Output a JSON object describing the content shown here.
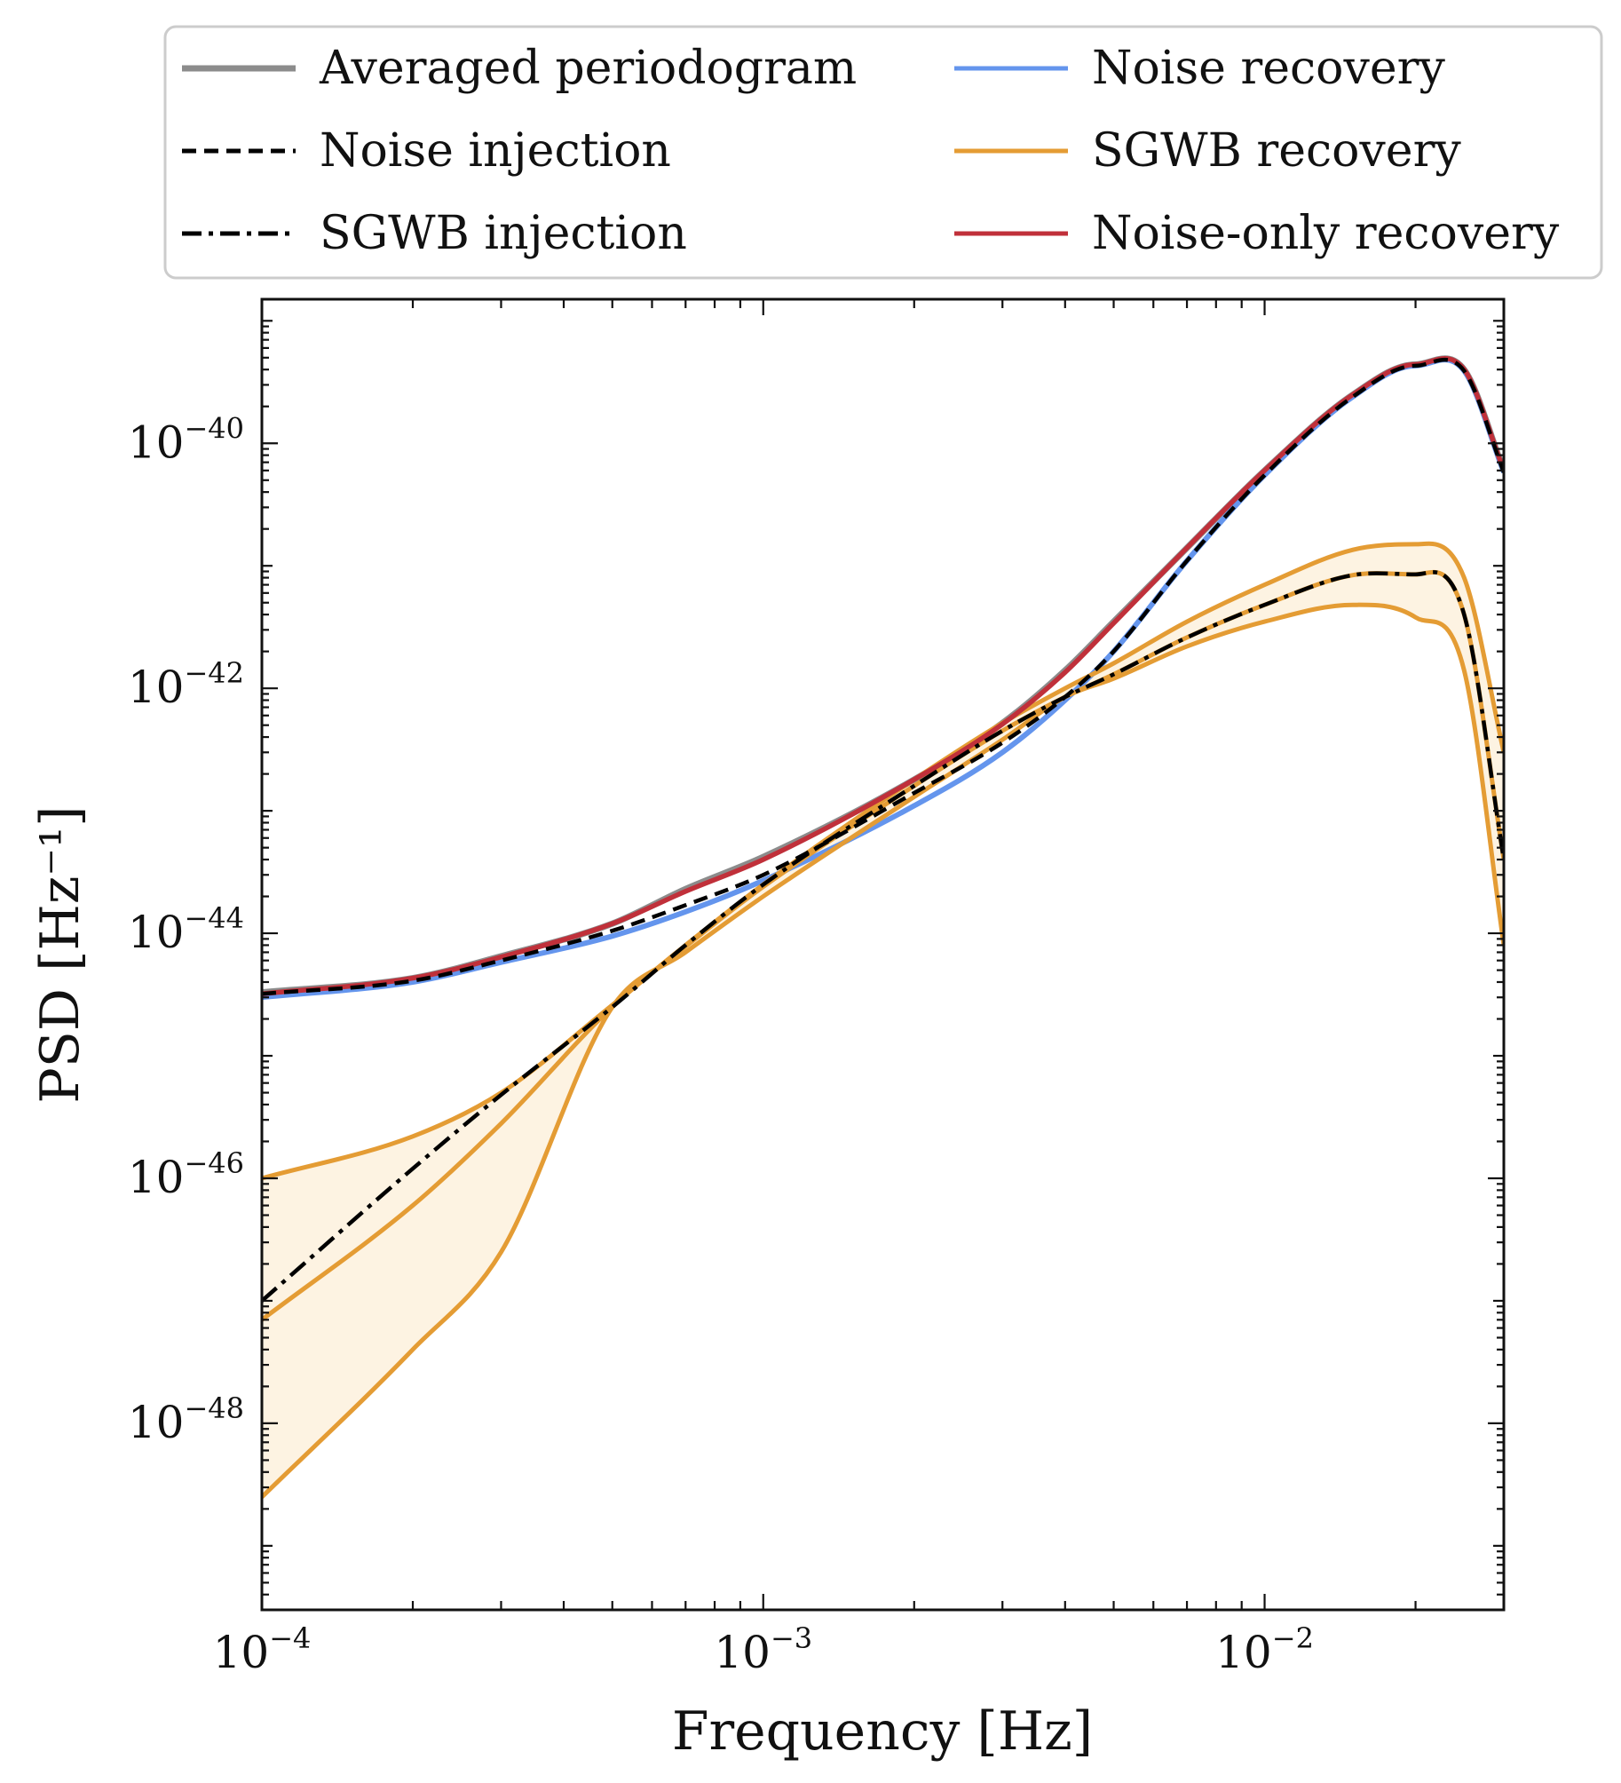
{
  "chart_data": {
    "type": "line",
    "title": "",
    "xlabel": "Frequency [Hz]",
    "ylabel": "PSD [Hz⁻¹]",
    "xscale": "log",
    "yscale": "log",
    "xlim": [
      0.0001,
      0.03
    ],
    "ylim": [
      3e-50,
      1.5e-39
    ],
    "grid": false,
    "legend_location": "upper center, outside above plot, two columns",
    "x_ticks": [
      {
        "value": 0.0001,
        "base": "10",
        "exp": "−4"
      },
      {
        "value": 0.001,
        "base": "10",
        "exp": "−3"
      },
      {
        "value": 0.01,
        "base": "10",
        "exp": "−2"
      }
    ],
    "y_ticks": [
      {
        "value": 1e-40,
        "base": "10",
        "exp": "−40"
      },
      {
        "value": 1e-42,
        "base": "10",
        "exp": "−42"
      },
      {
        "value": 1e-44,
        "base": "10",
        "exp": "−44"
      },
      {
        "value": 1e-46,
        "base": "10",
        "exp": "−46"
      },
      {
        "value": 1e-48,
        "base": "10",
        "exp": "−48"
      }
    ],
    "x": [
      0.0001,
      0.0002,
      0.0003,
      0.0005,
      0.0007,
      0.001,
      0.002,
      0.003,
      0.004,
      0.005,
      0.007,
      0.01,
      0.015,
      0.02,
      0.025,
      0.03
    ],
    "series": [
      {
        "name": "Averaged periodogram",
        "color": "#8c8c8c",
        "dash": "solid",
        "values": [
          3.3e-45,
          4.3e-45,
          6.5e-45,
          1.2e-44,
          2.3e-44,
          4.2e-44,
          1.8e-43,
          5.2e-43,
          1.4e-42,
          3.5e-42,
          1.4e-41,
          6e-41,
          2.5e-40,
          4.4e-40,
          4e-40,
          6e-41
        ]
      },
      {
        "name": "Noise injection",
        "color": "#000000",
        "dash": "dashed",
        "values": [
          3.2e-45,
          4.1e-45,
          6e-45,
          1.05e-44,
          1.7e-44,
          3e-44,
          1.4e-43,
          3.6e-43,
          8.5e-43,
          2e-42,
          1.1e-41,
          5.5e-41,
          2.4e-40,
          4.3e-40,
          3.9e-40,
          5.8e-41
        ]
      },
      {
        "name": "SGWB injection",
        "color": "#000000",
        "dash": "dashdot",
        "values": [
          1e-47,
          1.2e-46,
          4.8e-46,
          2.5e-45,
          8e-45,
          2.5e-44,
          1.6e-43,
          4.5e-43,
          8.5e-43,
          1.3e-42,
          2.6e-42,
          4.8e-42,
          8.4e-42,
          8.5e-42,
          4e-42,
          4e-44
        ]
      },
      {
        "name": "Noise recovery",
        "color": "#6495ed",
        "dash": "solid",
        "values": [
          3e-45,
          4e-45,
          5.8e-45,
          9.5e-45,
          1.5e-44,
          2.7e-44,
          1.1e-43,
          3e-43,
          8e-43,
          2e-42,
          1.1e-41,
          5.5e-41,
          2.4e-40,
          4.3e-40,
          3.9e-40,
          5.8e-41
        ]
      },
      {
        "name": "SGWB recovery",
        "color": "#e49c34",
        "dash": "solid",
        "values_upper": [
          1e-46,
          2.2e-46,
          5e-46,
          2.6e-45,
          8e-45,
          2.5e-44,
          1.8e-43,
          5.2e-43,
          1e-42,
          1.6e-42,
          3.5e-42,
          7e-42,
          1.35e-41,
          1.5e-41,
          8e-42,
          3e-43
        ],
        "values_lower": [
          2.5e-49,
          4e-48,
          2.5e-47,
          2.5e-45,
          7e-45,
          2e-44,
          1.3e-43,
          3.8e-43,
          8.5e-43,
          1.2e-42,
          2.2e-42,
          3.5e-42,
          4.8e-42,
          3.8e-42,
          1.4e-42,
          8e-45
        ],
        "values_mid": [
          7e-48,
          6e-47,
          2.8e-46,
          2.5e-45,
          7.8e-45,
          2.4e-44,
          1.6e-43,
          4.5e-43,
          8.5e-43,
          1.3e-42,
          2.6e-42,
          4.8e-42,
          8.4e-42,
          8.5e-42,
          4e-42,
          4e-44
        ]
      },
      {
        "name": "Noise-only recovery",
        "color": "#c0303a",
        "dash": "solid",
        "values": [
          3.2e-45,
          4.3e-45,
          6.4e-45,
          1.2e-44,
          2.2e-44,
          4e-44,
          1.8e-43,
          5.1e-43,
          1.35e-42,
          3.4e-42,
          1.4e-41,
          6e-41,
          2.5e-40,
          4.4e-40,
          4e-40,
          6e-41
        ]
      }
    ]
  }
}
